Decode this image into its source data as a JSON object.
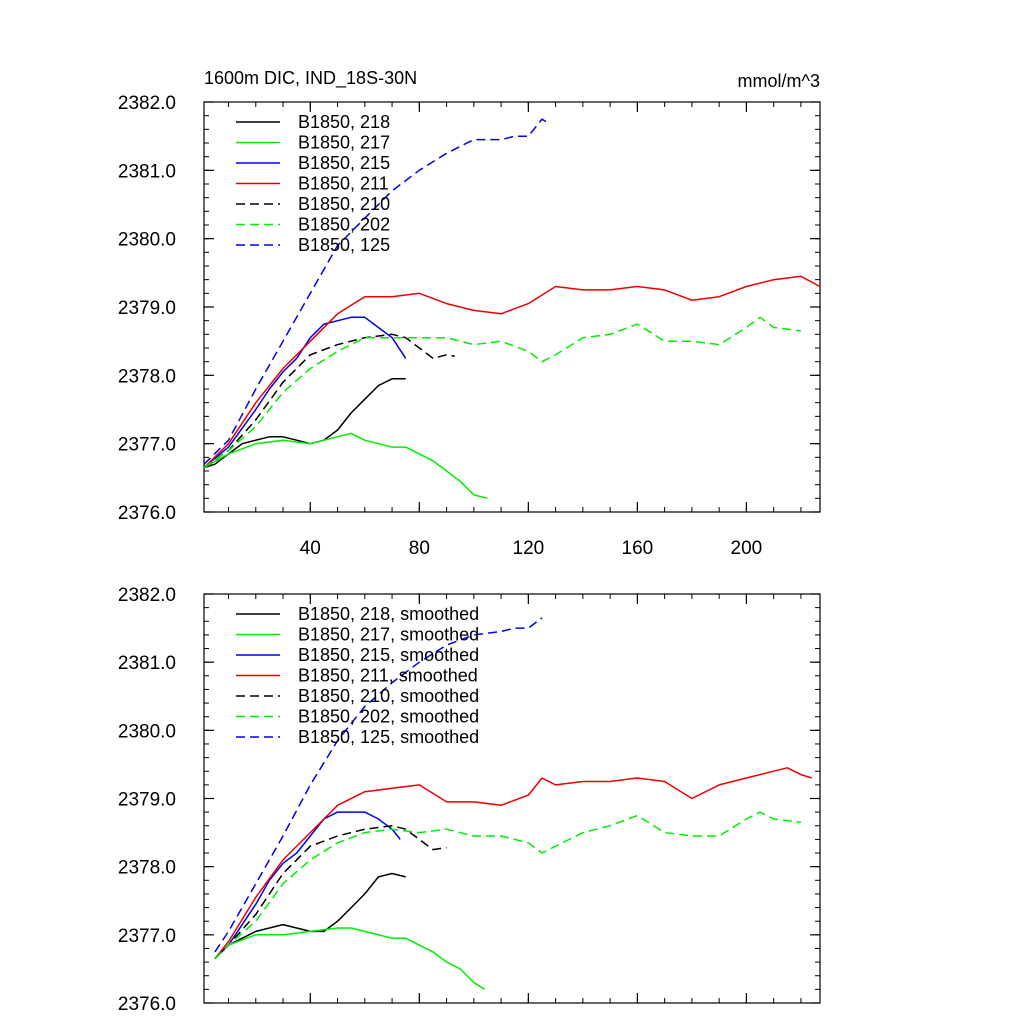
{
  "figure": {
    "title_left": "1600m DIC, IND_18S-30N",
    "title_right": "mmol/m^3"
  },
  "chart_data": [
    {
      "type": "line",
      "title": "1600m DIC, IND_18S-30N",
      "units": "mmol/m^3",
      "xlim": [
        1,
        227
      ],
      "ylim": [
        2376.0,
        2382.0
      ],
      "xticks": [
        40,
        80,
        120,
        160,
        200
      ],
      "yticks": [
        2376.0,
        2377.0,
        2378.0,
        2379.0,
        2380.0,
        2381.0,
        2382.0
      ],
      "ytick_labels": [
        "2376.0",
        "2377.0",
        "2378.0",
        "2379.0",
        "2380.0",
        "2381.0",
        "2382.0"
      ],
      "legend_position": "top-left",
      "grid": false,
      "series": [
        {
          "name": "B1850, 218",
          "color": "#000000",
          "dash": "solid",
          "x": [
            1,
            5,
            10,
            15,
            20,
            25,
            30,
            35,
            40,
            45,
            50,
            55,
            60,
            65,
            70,
            75
          ],
          "y": [
            2376.65,
            2376.7,
            2376.85,
            2377.0,
            2377.05,
            2377.1,
            2377.1,
            2377.05,
            2377.0,
            2377.05,
            2377.2,
            2377.45,
            2377.65,
            2377.85,
            2377.95,
            2377.95
          ]
        },
        {
          "name": "B1850, 217",
          "color": "#00ee00",
          "dash": "solid",
          "x": [
            1,
            10,
            20,
            30,
            40,
            50,
            55,
            60,
            65,
            70,
            75,
            80,
            85,
            90,
            95,
            100,
            105
          ],
          "y": [
            2376.65,
            2376.85,
            2377.0,
            2377.05,
            2377.0,
            2377.1,
            2377.15,
            2377.05,
            2377.0,
            2376.95,
            2376.95,
            2376.85,
            2376.75,
            2376.6,
            2376.45,
            2376.25,
            2376.2
          ]
        },
        {
          "name": "B1850, 215",
          "color": "#0000ee",
          "dash": "solid",
          "x": [
            1,
            10,
            20,
            25,
            30,
            35,
            40,
            45,
            50,
            55,
            60,
            65,
            70,
            75
          ],
          "y": [
            2376.65,
            2376.95,
            2377.5,
            2377.8,
            2378.05,
            2378.25,
            2378.55,
            2378.75,
            2378.8,
            2378.85,
            2378.85,
            2378.7,
            2378.55,
            2378.25
          ]
        },
        {
          "name": "B1850, 211",
          "color": "#ee0000",
          "dash": "solid",
          "x": [
            1,
            10,
            20,
            30,
            40,
            50,
            60,
            70,
            80,
            90,
            100,
            110,
            120,
            130,
            140,
            150,
            160,
            170,
            180,
            190,
            200,
            210,
            220,
            227
          ],
          "y": [
            2376.65,
            2377.0,
            2377.6,
            2378.1,
            2378.5,
            2378.9,
            2379.15,
            2379.15,
            2379.2,
            2379.05,
            2378.95,
            2378.9,
            2379.05,
            2379.3,
            2379.25,
            2379.25,
            2379.3,
            2379.25,
            2379.1,
            2379.15,
            2379.3,
            2379.4,
            2379.45,
            2379.3
          ]
        },
        {
          "name": "B1850, 210",
          "color": "#000000",
          "dash": "dash",
          "x": [
            1,
            10,
            20,
            30,
            40,
            50,
            60,
            70,
            75,
            80,
            85,
            90,
            93
          ],
          "y": [
            2376.65,
            2376.9,
            2377.35,
            2377.9,
            2378.3,
            2378.45,
            2378.55,
            2378.6,
            2378.55,
            2378.4,
            2378.25,
            2378.3,
            2378.28
          ]
        },
        {
          "name": "B1850, 202",
          "color": "#00ee00",
          "dash": "dash",
          "x": [
            1,
            10,
            20,
            30,
            40,
            50,
            60,
            70,
            80,
            90,
            100,
            110,
            120,
            125,
            130,
            140,
            150,
            160,
            170,
            180,
            190,
            200,
            205,
            210,
            220
          ],
          "y": [
            2376.65,
            2376.9,
            2377.25,
            2377.75,
            2378.1,
            2378.35,
            2378.55,
            2378.55,
            2378.55,
            2378.55,
            2378.45,
            2378.5,
            2378.35,
            2378.2,
            2378.3,
            2378.55,
            2378.6,
            2378.75,
            2378.5,
            2378.5,
            2378.45,
            2378.7,
            2378.85,
            2378.7,
            2378.65
          ]
        },
        {
          "name": "B1850, 125",
          "color": "#0000ee",
          "dash": "dash",
          "x": [
            1,
            10,
            20,
            30,
            40,
            50,
            60,
            70,
            80,
            90,
            100,
            110,
            115,
            120,
            125,
            127
          ],
          "y": [
            2376.7,
            2377.05,
            2377.8,
            2378.5,
            2379.2,
            2379.9,
            2380.3,
            2380.7,
            2381.0,
            2381.25,
            2381.45,
            2381.45,
            2381.5,
            2381.5,
            2381.75,
            2381.7
          ]
        }
      ]
    },
    {
      "type": "line",
      "xlim": [
        1,
        227
      ],
      "ylim": [
        2376.0,
        2382.0
      ],
      "xticks": [
        40,
        80,
        120,
        160,
        200
      ],
      "yticks": [
        2376.0,
        2377.0,
        2378.0,
        2379.0,
        2380.0,
        2381.0,
        2382.0
      ],
      "ytick_labels": [
        "2376.0",
        "2377.0",
        "2378.0",
        "2379.0",
        "2380.0",
        "2381.0",
        "2382.0"
      ],
      "legend_position": "top-left",
      "grid": false,
      "series": [
        {
          "name": "B1850, 218, smoothed",
          "color": "#000000",
          "dash": "solid",
          "x": [
            5,
            10,
            15,
            20,
            25,
            30,
            35,
            40,
            45,
            50,
            55,
            60,
            65,
            70,
            75
          ],
          "y": [
            2376.65,
            2376.85,
            2376.95,
            2377.05,
            2377.1,
            2377.15,
            2377.1,
            2377.05,
            2377.05,
            2377.2,
            2377.4,
            2377.6,
            2377.85,
            2377.9,
            2377.85
          ]
        },
        {
          "name": "B1850, 217, smoothed",
          "color": "#00ee00",
          "dash": "solid",
          "x": [
            5,
            10,
            20,
            30,
            40,
            50,
            55,
            60,
            65,
            70,
            75,
            80,
            85,
            90,
            95,
            100,
            104
          ],
          "y": [
            2376.65,
            2376.85,
            2377.0,
            2377.0,
            2377.05,
            2377.1,
            2377.1,
            2377.05,
            2377.0,
            2376.95,
            2376.95,
            2376.85,
            2376.75,
            2376.6,
            2376.5,
            2376.3,
            2376.2
          ]
        },
        {
          "name": "B1850, 215, smoothed",
          "color": "#0000ee",
          "dash": "solid",
          "x": [
            5,
            10,
            20,
            25,
            30,
            35,
            40,
            45,
            50,
            55,
            60,
            65,
            70,
            73
          ],
          "y": [
            2376.65,
            2376.85,
            2377.45,
            2377.8,
            2378.05,
            2378.2,
            2378.45,
            2378.7,
            2378.8,
            2378.8,
            2378.8,
            2378.7,
            2378.55,
            2378.4
          ]
        },
        {
          "name": "B1850, 211, smoothed",
          "color": "#ee0000",
          "dash": "solid",
          "x": [
            5,
            10,
            20,
            30,
            40,
            50,
            60,
            70,
            80,
            90,
            100,
            110,
            120,
            125,
            130,
            140,
            150,
            160,
            170,
            180,
            190,
            200,
            210,
            215,
            220,
            224
          ],
          "y": [
            2376.65,
            2376.9,
            2377.55,
            2378.1,
            2378.5,
            2378.9,
            2379.1,
            2379.15,
            2379.2,
            2378.95,
            2378.95,
            2378.9,
            2379.05,
            2379.3,
            2379.2,
            2379.25,
            2379.25,
            2379.3,
            2379.25,
            2379.0,
            2379.2,
            2379.3,
            2379.4,
            2379.45,
            2379.35,
            2379.3
          ]
        },
        {
          "name": "B1850, 210, smoothed",
          "color": "#000000",
          "dash": "dash",
          "x": [
            5,
            10,
            20,
            30,
            40,
            50,
            60,
            70,
            75,
            80,
            85,
            90
          ],
          "y": [
            2376.65,
            2376.85,
            2377.3,
            2377.9,
            2378.3,
            2378.45,
            2378.55,
            2378.6,
            2378.55,
            2378.4,
            2378.25,
            2378.28
          ]
        },
        {
          "name": "B1850, 202, smoothed",
          "color": "#00ee00",
          "dash": "dash",
          "x": [
            5,
            10,
            20,
            30,
            40,
            50,
            60,
            70,
            80,
            90,
            100,
            110,
            120,
            125,
            130,
            140,
            150,
            160,
            170,
            180,
            190,
            200,
            205,
            210,
            220
          ],
          "y": [
            2376.65,
            2376.85,
            2377.2,
            2377.75,
            2378.1,
            2378.35,
            2378.5,
            2378.55,
            2378.5,
            2378.55,
            2378.45,
            2378.45,
            2378.35,
            2378.2,
            2378.3,
            2378.5,
            2378.6,
            2378.75,
            2378.5,
            2378.45,
            2378.45,
            2378.7,
            2378.8,
            2378.7,
            2378.65
          ]
        },
        {
          "name": "B1850, 125, smoothed",
          "color": "#0000ee",
          "dash": "dash",
          "x": [
            5,
            10,
            20,
            30,
            40,
            50,
            60,
            70,
            80,
            90,
            100,
            110,
            115,
            120,
            125
          ],
          "y": [
            2376.75,
            2377.05,
            2377.75,
            2378.45,
            2379.2,
            2379.85,
            2380.35,
            2380.7,
            2381.0,
            2381.25,
            2381.4,
            2381.45,
            2381.5,
            2381.5,
            2381.65
          ]
        }
      ]
    }
  ]
}
